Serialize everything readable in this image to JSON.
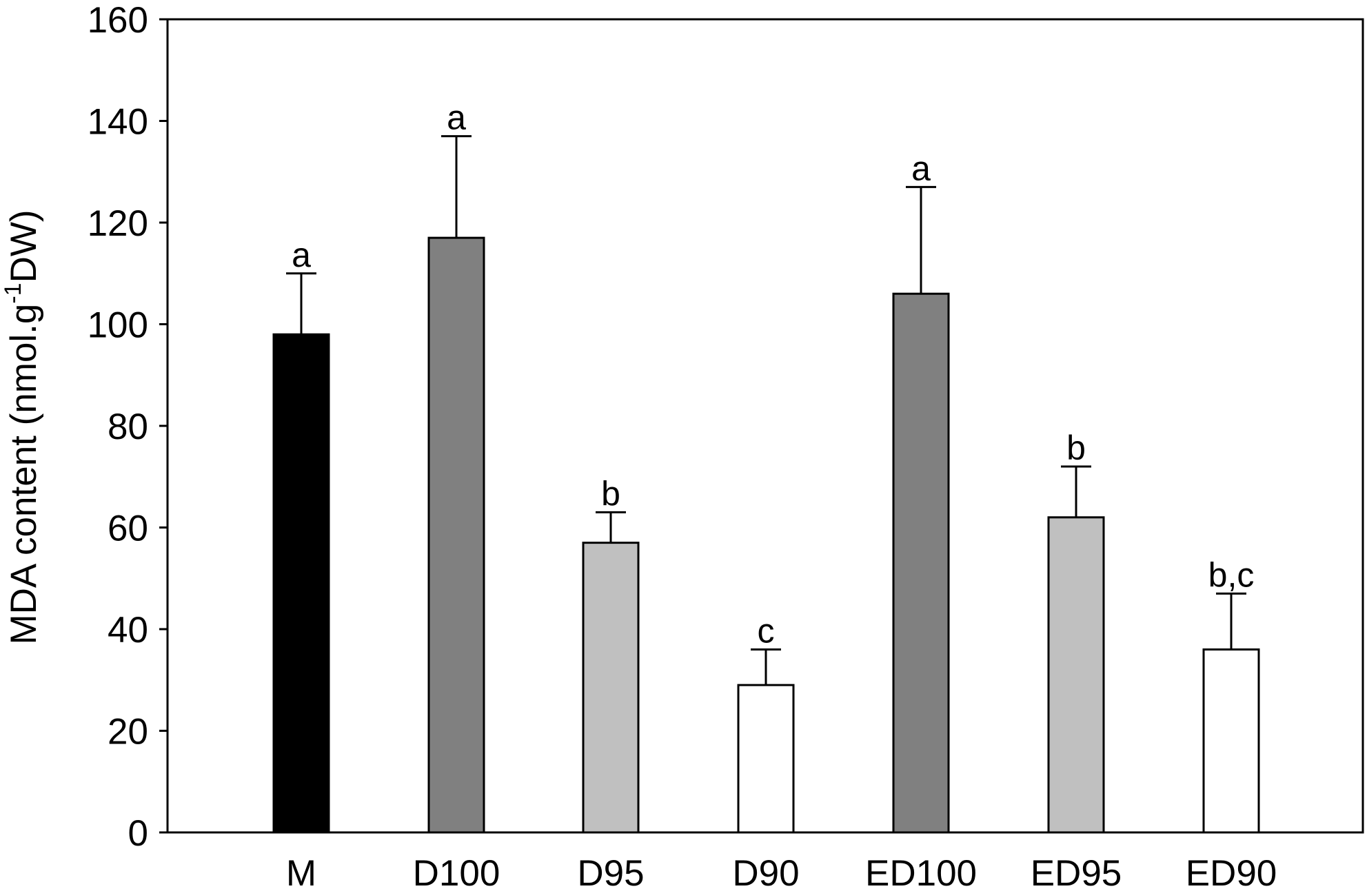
{
  "chart_data": {
    "type": "bar",
    "categories": [
      "M",
      "D100",
      "D95",
      "D90",
      "ED100",
      "ED95",
      "ED90"
    ],
    "values": [
      98,
      117,
      57,
      29,
      106,
      62,
      36
    ],
    "errors": [
      12,
      20,
      6,
      7,
      21,
      10,
      11
    ],
    "significance": [
      "a",
      "a",
      "b",
      "c",
      "a",
      "b",
      "b,c"
    ],
    "bar_colors": [
      "#000000",
      "#808080",
      "#c0c0c0",
      "#ffffff",
      "#808080",
      "#c0c0c0",
      "#ffffff"
    ],
    "ylabel": {
      "prefix": "MDA content (nmol.g",
      "superscript": "-1",
      "suffix": "DW)"
    },
    "ylim": [
      0,
      160
    ],
    "yticks": [
      0,
      20,
      40,
      60,
      80,
      100,
      120,
      140,
      160
    ],
    "grid": false,
    "legend": "none"
  }
}
